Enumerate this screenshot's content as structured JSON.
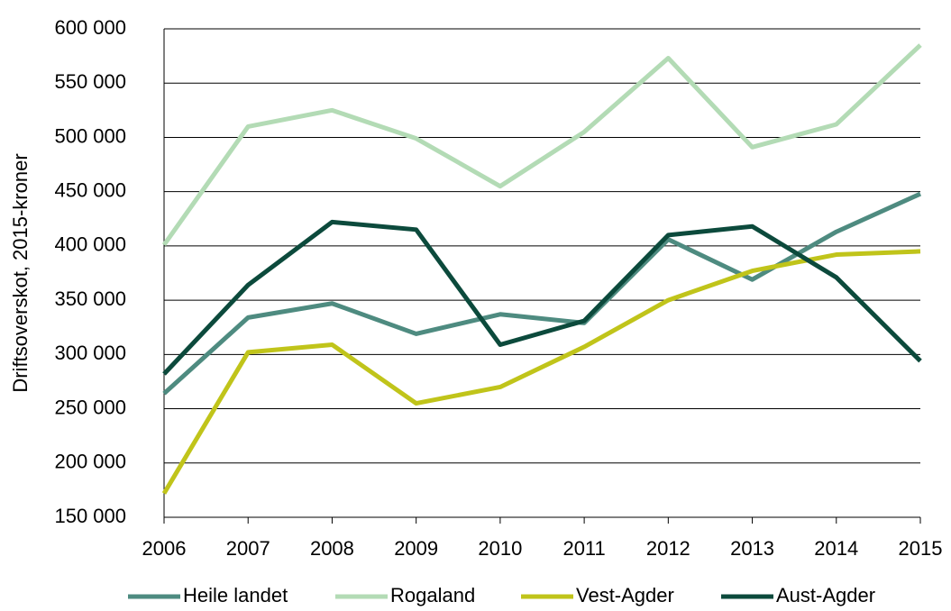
{
  "chart_data": {
    "type": "line",
    "y_label": "Driftsoverskot, 2015-kroner",
    "categories": [
      "2006",
      "2007",
      "2008",
      "2009",
      "2010",
      "2011",
      "2012",
      "2013",
      "2014",
      "2015"
    ],
    "series": [
      {
        "name": "Heile landet",
        "color": "#4e8b80",
        "values": [
          264000,
          334000,
          347000,
          319000,
          337000,
          329000,
          406000,
          369000,
          413000,
          448000
        ]
      },
      {
        "name": "Rogaland",
        "color": "#b3dbb5",
        "values": [
          401000,
          510000,
          525000,
          499000,
          455000,
          505000,
          573000,
          491000,
          512000,
          585000
        ]
      },
      {
        "name": "Vest-Agder",
        "color": "#c0c41a",
        "values": [
          172000,
          302000,
          309000,
          255000,
          270000,
          307000,
          350000,
          377000,
          392000,
          395000
        ]
      },
      {
        "name": "Aust-Agder",
        "color": "#0c4a3c",
        "values": [
          282000,
          364000,
          422000,
          415000,
          309000,
          331000,
          410000,
          418000,
          371000,
          294000
        ]
      }
    ],
    "ylim": [
      150000,
      600000
    ],
    "yticks": [
      {
        "value": 150000,
        "label": "150 000"
      },
      {
        "value": 200000,
        "label": "200 000"
      },
      {
        "value": 250000,
        "label": "250 000"
      },
      {
        "value": 300000,
        "label": "300 000"
      },
      {
        "value": 350000,
        "label": "350 000"
      },
      {
        "value": 400000,
        "label": "400 000"
      },
      {
        "value": 450000,
        "label": "450 000"
      },
      {
        "value": 500000,
        "label": "500 000"
      },
      {
        "value": 550000,
        "label": "550 000"
      },
      {
        "value": 600000,
        "label": "600 000"
      }
    ],
    "grid": true,
    "legend": "bottom"
  }
}
